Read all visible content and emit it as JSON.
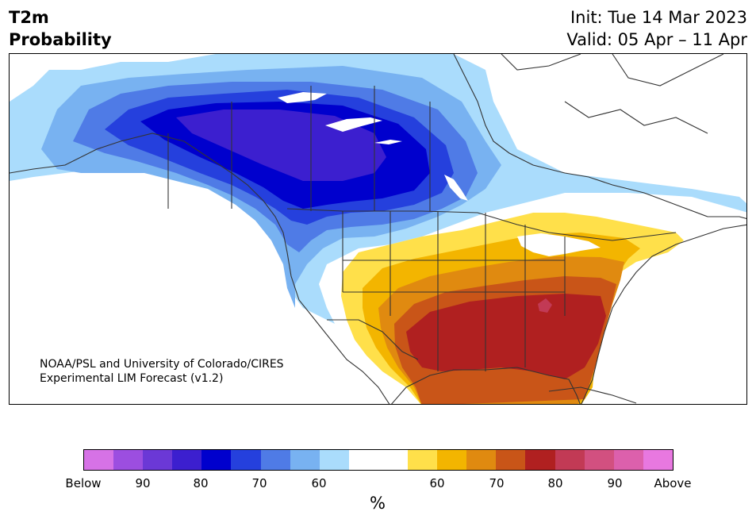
{
  "header": {
    "title_line1": "T2m",
    "title_line2": "Probability",
    "init": "Init: Tue 14 Mar 2023",
    "valid": "Valid: 05 Apr – 11 Apr"
  },
  "credit": {
    "line1": "NOAA/PSL and University of Colorado/CIRES",
    "line2": "Experimental LIM Forecast (v1.2)"
  },
  "colorbar": {
    "colors": [
      "#d672e6",
      "#9c4ee0",
      "#6b38d6",
      "#3c1fcf",
      "#0000cd",
      "#2540dd",
      "#4f7be6",
      "#78b2f1",
      "#aadcfc",
      "#ffffff",
      "#ffffff",
      "#ffe04a",
      "#f3b500",
      "#e08a10",
      "#c95518",
      "#b02020",
      "#c23a55",
      "#d25080",
      "#dc60ac",
      "#e878e0"
    ],
    "tick_labels": [
      "Below",
      "90",
      "80",
      "70",
      "60",
      "60",
      "70",
      "80",
      "90",
      "Above"
    ],
    "unit": "%"
  },
  "map": {
    "region": "North America",
    "colors": {
      "below_60": "#aadcfc",
      "below_70": "#78b2f1",
      "below_75": "#4f7be6",
      "below_80": "#2540dd",
      "below_85": "#0000cd",
      "below_90": "#3c1fcf",
      "above_60": "#ffe04a",
      "above_65": "#f3b500",
      "above_70": "#e08a10",
      "above_75": "#c95518",
      "above_80": "#b02020",
      "above_85": "#c23a55",
      "land_line": "#333333",
      "water": "#ffffff"
    }
  }
}
